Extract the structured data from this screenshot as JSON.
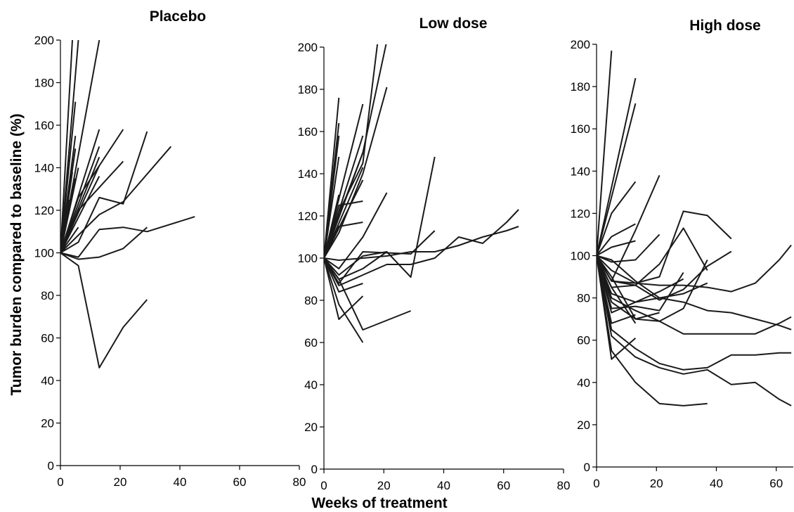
{
  "figure": {
    "ylabel": "Tumor burden compared to baseline (%)",
    "xlabel": "Weeks of treatment",
    "line_color": "#1a1a1a"
  },
  "chart_data": [
    {
      "type": "line",
      "title": "Placebo",
      "xlim": [
        0,
        80
      ],
      "ylim": [
        0,
        200
      ],
      "x_ticks": [
        0,
        20,
        40,
        60,
        80
      ],
      "y_ticks": [
        0,
        20,
        40,
        60,
        80,
        100,
        120,
        140,
        160,
        180,
        200
      ],
      "series": [
        {
          "x": [
            0,
            4
          ],
          "y": [
            100,
            200
          ]
        },
        {
          "x": [
            0,
            6
          ],
          "y": [
            100,
            200
          ]
        },
        {
          "x": [
            0,
            5
          ],
          "y": [
            100,
            171
          ]
        },
        {
          "x": [
            0,
            13
          ],
          "y": [
            100,
            200
          ]
        },
        {
          "x": [
            0,
            5
          ],
          "y": [
            100,
            155
          ]
        },
        {
          "x": [
            0,
            5
          ],
          "y": [
            100,
            149
          ]
        },
        {
          "x": [
            0,
            4
          ],
          "y": [
            100,
            138
          ]
        },
        {
          "x": [
            0,
            5
          ],
          "y": [
            100,
            135
          ]
        },
        {
          "x": [
            0,
            4
          ],
          "y": [
            100,
            130
          ]
        },
        {
          "x": [
            0,
            3
          ],
          "y": [
            100,
            125
          ]
        },
        {
          "x": [
            0,
            6
          ],
          "y": [
            100,
            140
          ]
        },
        {
          "x": [
            0,
            13
          ],
          "y": [
            100,
            158
          ]
        },
        {
          "x": [
            0,
            13
          ],
          "y": [
            100,
            150
          ]
        },
        {
          "x": [
            0,
            13
          ],
          "y": [
            100,
            145
          ]
        },
        {
          "x": [
            0,
            13
          ],
          "y": [
            100,
            141
          ]
        },
        {
          "x": [
            0,
            13
          ],
          "y": [
            100,
            136
          ]
        },
        {
          "x": [
            0,
            6
          ],
          "y": [
            100,
            120
          ]
        },
        {
          "x": [
            0,
            6
          ],
          "y": [
            100,
            112
          ]
        },
        {
          "x": [
            0,
            6,
            21
          ],
          "y": [
            100,
            126,
            158
          ]
        },
        {
          "x": [
            0,
            6,
            21
          ],
          "y": [
            100,
            120,
            143
          ]
        },
        {
          "x": [
            0,
            6,
            13,
            21,
            29
          ],
          "y": [
            100,
            105,
            126,
            123,
            157
          ]
        },
        {
          "x": [
            0,
            13,
            21,
            37
          ],
          "y": [
            100,
            118,
            124,
            150
          ]
        },
        {
          "x": [
            0,
            6,
            13,
            21,
            29,
            45
          ],
          "y": [
            100,
            98,
            111,
            112,
            110,
            117
          ]
        },
        {
          "x": [
            0,
            6,
            13,
            21,
            29
          ],
          "y": [
            100,
            97,
            98,
            102,
            112
          ]
        },
        {
          "x": [
            0,
            6,
            13,
            21,
            29
          ],
          "y": [
            100,
            94,
            46,
            65,
            78
          ]
        }
      ]
    },
    {
      "type": "line",
      "title": "Low dose",
      "xlim": [
        0,
        80
      ],
      "ylim": [
        0,
        200
      ],
      "x_ticks": [
        0,
        20,
        40,
        60,
        80
      ],
      "y_ticks": [
        0,
        20,
        40,
        60,
        80,
        100,
        120,
        140,
        160,
        180,
        200
      ],
      "series": [
        {
          "x": [
            0,
            5
          ],
          "y": [
            100,
            176
          ]
        },
        {
          "x": [
            0,
            5
          ],
          "y": [
            100,
            164
          ]
        },
        {
          "x": [
            0,
            5
          ],
          "y": [
            100,
            158
          ]
        },
        {
          "x": [
            0,
            5
          ],
          "y": [
            100,
            148
          ]
        },
        {
          "x": [
            0,
            5
          ],
          "y": [
            100,
            130
          ]
        },
        {
          "x": [
            0,
            13
          ],
          "y": [
            100,
            173
          ]
        },
        {
          "x": [
            0,
            13
          ],
          "y": [
            100,
            158
          ]
        },
        {
          "x": [
            0,
            13
          ],
          "y": [
            100,
            150
          ]
        },
        {
          "x": [
            0,
            13
          ],
          "y": [
            100,
            143
          ]
        },
        {
          "x": [
            0,
            13
          ],
          "y": [
            100,
            137
          ]
        },
        {
          "x": [
            0,
            5,
            13,
            18
          ],
          "y": [
            100,
            122,
            145,
            203
          ]
        },
        {
          "x": [
            0,
            5,
            13,
            21
          ],
          "y": [
            100,
            120,
            150,
            203
          ]
        },
        {
          "x": [
            0,
            5,
            13,
            21
          ],
          "y": [
            100,
            112,
            140,
            181
          ]
        },
        {
          "x": [
            0,
            5,
            13
          ],
          "y": [
            100,
            125,
            127
          ]
        },
        {
          "x": [
            0,
            5,
            13
          ],
          "y": [
            100,
            115,
            117
          ]
        },
        {
          "x": [
            0,
            5,
            13,
            21
          ],
          "y": [
            100,
            95,
            110,
            131
          ]
        },
        {
          "x": [
            0,
            5,
            13,
            29,
            37
          ],
          "y": [
            100,
            88,
            103,
            102,
            113
          ]
        },
        {
          "x": [
            0,
            5,
            13,
            21,
            29,
            37
          ],
          "y": [
            100,
            90,
            95,
            103,
            91,
            148
          ]
        },
        {
          "x": [
            0,
            5,
            13,
            21,
            29,
            37,
            45,
            53,
            61,
            65
          ],
          "y": [
            100,
            87,
            92,
            97,
            97,
            100,
            110,
            107,
            117,
            123
          ]
        },
        {
          "x": [
            0,
            5,
            13,
            21,
            29,
            37,
            45,
            53,
            61,
            65
          ],
          "y": [
            100,
            99,
            100,
            101,
            103,
            103,
            106,
            110,
            113,
            115
          ]
        },
        {
          "x": [
            0,
            5,
            13,
            21
          ],
          "y": [
            100,
            92,
            101,
            103
          ]
        },
        {
          "x": [
            0,
            5,
            13
          ],
          "y": [
            100,
            84,
            88
          ]
        },
        {
          "x": [
            0,
            5,
            13
          ],
          "y": [
            100,
            71,
            82
          ]
        },
        {
          "x": [
            0,
            5,
            13
          ],
          "y": [
            100,
            78,
            60
          ]
        },
        {
          "x": [
            0,
            5,
            13,
            29
          ],
          "y": [
            100,
            90,
            66,
            75
          ]
        }
      ]
    },
    {
      "type": "line",
      "title": "High dose",
      "xlim": [
        0,
        80
      ],
      "ylim": [
        0,
        200
      ],
      "x_ticks": [
        0,
        20,
        40,
        60
      ],
      "y_ticks": [
        0,
        20,
        40,
        60,
        80,
        100,
        120,
        140,
        160,
        180,
        200
      ],
      "series": [
        {
          "x": [
            0,
            5
          ],
          "y": [
            100,
            197
          ]
        },
        {
          "x": [
            0,
            13
          ],
          "y": [
            100,
            184
          ]
        },
        {
          "x": [
            0,
            13
          ],
          "y": [
            100,
            172
          ]
        },
        {
          "x": [
            0,
            5,
            13
          ],
          "y": [
            100,
            120,
            135
          ]
        },
        {
          "x": [
            0,
            5,
            13
          ],
          "y": [
            100,
            109,
            115
          ]
        },
        {
          "x": [
            0,
            5,
            13
          ],
          "y": [
            100,
            104,
            107
          ]
        },
        {
          "x": [
            0,
            5,
            13,
            21
          ],
          "y": [
            100,
            88,
            112,
            138
          ]
        },
        {
          "x": [
            0,
            5,
            13,
            21
          ],
          "y": [
            100,
            97,
            98,
            110
          ]
        },
        {
          "x": [
            0,
            5,
            13,
            21,
            29,
            37
          ],
          "y": [
            100,
            88,
            86,
            96,
            113,
            93
          ]
        },
        {
          "x": [
            0,
            5,
            13,
            21,
            29,
            37,
            45
          ],
          "y": [
            100,
            93,
            87,
            90,
            121,
            119,
            108
          ]
        },
        {
          "x": [
            0,
            5,
            13,
            21,
            29,
            37,
            45
          ],
          "y": [
            100,
            85,
            86,
            79,
            84,
            95,
            102
          ]
        },
        {
          "x": [
            0,
            5,
            13,
            21,
            29,
            37,
            45,
            53,
            61,
            65
          ],
          "y": [
            100,
            88,
            87,
            86,
            86,
            85,
            83,
            87,
            98,
            105
          ]
        },
        {
          "x": [
            0,
            5,
            13,
            21,
            29,
            37,
            45,
            53,
            61,
            65
          ],
          "y": [
            100,
            82,
            78,
            80,
            78,
            74,
            73,
            70,
            67,
            65
          ]
        },
        {
          "x": [
            0,
            5,
            13,
            21,
            29,
            37,
            45,
            53,
            61,
            65
          ],
          "y": [
            100,
            78,
            70,
            69,
            63,
            63,
            63,
            63,
            68,
            71
          ]
        },
        {
          "x": [
            0,
            5,
            13,
            21,
            29,
            37
          ],
          "y": [
            100,
            80,
            74,
            69,
            75,
            98
          ]
        },
        {
          "x": [
            0,
            5,
            13,
            21,
            29
          ],
          "y": [
            100,
            75,
            76,
            74,
            92
          ]
        },
        {
          "x": [
            0,
            5,
            13,
            21,
            29
          ],
          "y": [
            100,
            73,
            78,
            83,
            89
          ]
        },
        {
          "x": [
            0,
            5,
            13,
            21,
            29,
            37,
            45,
            53,
            61,
            65
          ],
          "y": [
            100,
            65,
            56,
            49,
            46,
            47,
            53,
            53,
            54,
            54
          ]
        },
        {
          "x": [
            0,
            5,
            13,
            21,
            29,
            37,
            45,
            53,
            61,
            65
          ],
          "y": [
            100,
            62,
            52,
            47,
            44,
            46,
            39,
            40,
            32,
            29
          ]
        },
        {
          "x": [
            0,
            5,
            13,
            21,
            29,
            37
          ],
          "y": [
            100,
            55,
            40,
            30,
            29,
            30
          ]
        },
        {
          "x": [
            0,
            5,
            13
          ],
          "y": [
            100,
            51,
            61
          ]
        },
        {
          "x": [
            0,
            5,
            13
          ],
          "y": [
            100,
            68,
            72
          ]
        },
        {
          "x": [
            0,
            5,
            13,
            21
          ],
          "y": [
            100,
            90,
            70,
            73
          ]
        },
        {
          "x": [
            0,
            5,
            13
          ],
          "y": [
            100,
            85,
            68
          ]
        },
        {
          "x": [
            0,
            5,
            13,
            21,
            29,
            37
          ],
          "y": [
            100,
            98,
            88,
            80,
            82,
            87
          ]
        }
      ]
    }
  ]
}
